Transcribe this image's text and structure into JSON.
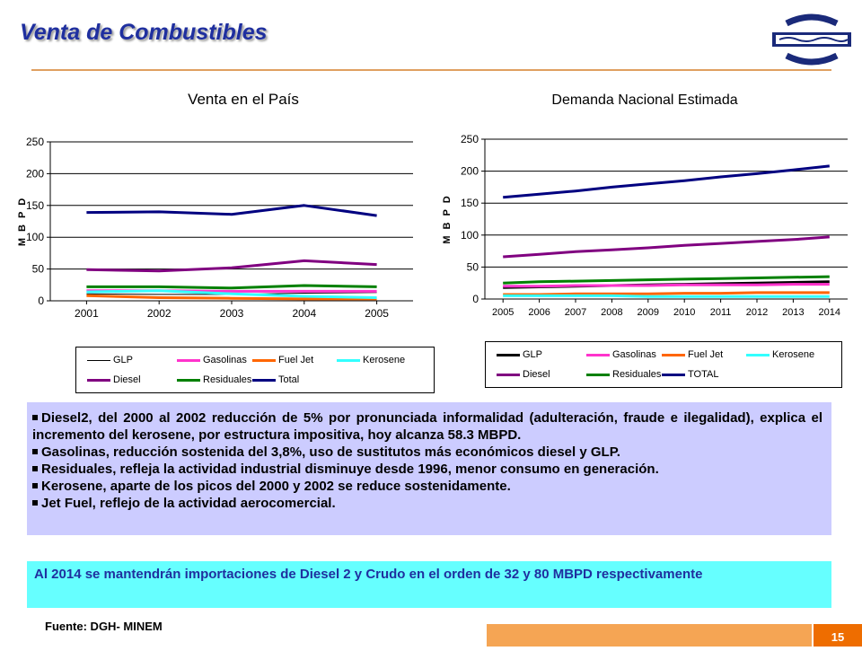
{
  "header": {
    "title": "Venta de Combustibles"
  },
  "colors": {
    "title": "#1f2f9f",
    "rule": "#e0a060",
    "bullets_bg": "#ccccff",
    "note_bg": "#66ffff",
    "footer_bar": "#f5a554",
    "page_num_bg": "#ee6d00"
  },
  "logo_icon": "company-logo-icon",
  "chart_data": [
    {
      "type": "line",
      "title": "Venta en el País",
      "xlabel": "",
      "ylabel": "MBPD",
      "ylim": [
        0,
        250
      ],
      "yticks": [
        "0",
        "50",
        "100",
        "150",
        "200",
        "250"
      ],
      "categories": [
        "2001",
        "2002",
        "2003",
        "2004",
        "2005"
      ],
      "grid": true,
      "legend_position": "bottom",
      "series": [
        {
          "name": "GLP",
          "color": "#000000",
          "width": 1,
          "values": [
            11,
            10,
            10,
            12,
            13
          ]
        },
        {
          "name": "Gasolinas",
          "color": "#ff33cc",
          "width": 3,
          "values": [
            16,
            16,
            15,
            15,
            15
          ]
        },
        {
          "name": "Fuel Jet",
          "color": "#ff6600",
          "width": 3,
          "values": [
            8,
            5,
            4,
            3,
            3
          ]
        },
        {
          "name": "Kerosene",
          "color": "#33ffff",
          "width": 3,
          "values": [
            14,
            16,
            11,
            7,
            5
          ]
        },
        {
          "name": "Diesel",
          "color": "#800080",
          "width": 3,
          "values": [
            49,
            47,
            52,
            63,
            57
          ]
        },
        {
          "name": "Residuales",
          "color": "#008000",
          "width": 3,
          "values": [
            22,
            22,
            20,
            24,
            22
          ]
        },
        {
          "name": "Total",
          "color": "#000080",
          "width": 3,
          "values": [
            139,
            140,
            136,
            150,
            134
          ]
        }
      ]
    },
    {
      "type": "line",
      "title": "Demanda Nacional Estimada",
      "xlabel": "",
      "ylabel": "MBPD",
      "ylim": [
        0,
        250
      ],
      "yticks": [
        "0",
        "50",
        "100",
        "150",
        "200",
        "250"
      ],
      "categories": [
        "2005",
        "2006",
        "2007",
        "2008",
        "2009",
        "2010",
        "2011",
        "2012",
        "2013",
        "2014"
      ],
      "grid": true,
      "legend_position": "bottom",
      "series": [
        {
          "name": "GLP",
          "color": "#000000",
          "width": 3,
          "values": [
            18,
            19,
            20,
            21,
            22,
            23,
            24,
            25,
            26,
            27
          ]
        },
        {
          "name": "Gasolinas",
          "color": "#ff33cc",
          "width": 3,
          "values": [
            20,
            20,
            21,
            21,
            21,
            22,
            22,
            22,
            23,
            23
          ]
        },
        {
          "name": "Fuel Jet",
          "color": "#ff6600",
          "width": 3,
          "values": [
            7,
            7,
            8,
            8,
            8,
            9,
            9,
            10,
            10,
            10
          ]
        },
        {
          "name": "Kerosene",
          "color": "#33ffff",
          "width": 3,
          "values": [
            5,
            5,
            5,
            5,
            4,
            4,
            4,
            4,
            4,
            4
          ]
        },
        {
          "name": "Diesel",
          "color": "#800080",
          "width": 3,
          "values": [
            66,
            70,
            74,
            77,
            80,
            84,
            87,
            90,
            93,
            97
          ]
        },
        {
          "name": "Residuales",
          "color": "#008000",
          "width": 3,
          "values": [
            25,
            27,
            28,
            29,
            30,
            31,
            32,
            33,
            34,
            35
          ]
        },
        {
          "name": "TOTAL",
          "color": "#000080",
          "width": 3,
          "values": [
            159,
            164,
            169,
            175,
            180,
            185,
            191,
            196,
            202,
            208
          ]
        }
      ]
    }
  ],
  "bullets": [
    "Diesel2, del 2000 al  2002 reducción de 5% por pronunciada informalidad (adulteración, fraude e ilegalidad), explica  el incremento del kerosene, por estructura impositiva, hoy alcanza 58.3 MBPD.",
    "Gasolinas, reducción  sostenida del 3,8%,  uso de sustitutos más económicos diesel y GLP.",
    "Residuales, refleja la actividad industrial  disminuye desde 1996,  menor consumo en generación.",
    "Kerosene, aparte de los picos del 2000 y 2002 se reduce sostenidamente.",
    "Jet Fuel, reflejo de la actividad aerocomercial."
  ],
  "note": "Al 2014 se mantendrán importaciones de Diesel 2 y Crudo en el orden de 32 y 80 MBPD respectivamente",
  "footer": {
    "source": "Fuente: DGH- MINEM",
    "page_number": "15"
  }
}
